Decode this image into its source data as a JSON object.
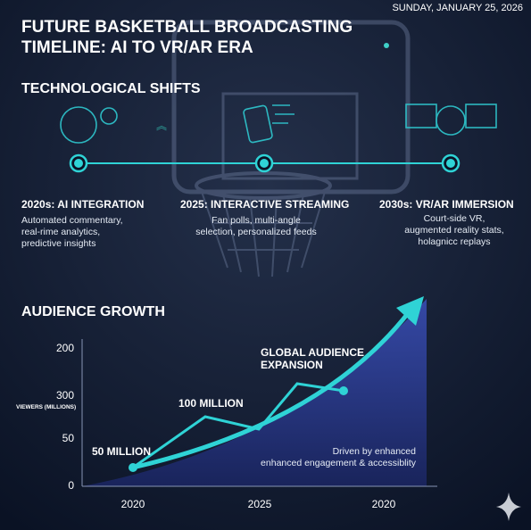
{
  "header": {
    "title_lines": [
      "FUTURE BASKETBALL BROADCASTING",
      "TIMELINE: AI TO VR/AR ERA"
    ],
    "date": "SUNDAY, JANUARY 25, 2026"
  },
  "timeline": {
    "heading": "TECHNOLOGICAL SHIFTS",
    "stages": [
      {
        "title": "2020s: AI INTEGRATION",
        "lines": [
          "Automated commentary,",
          "real-rime analytics,",
          "predictive insights"
        ]
      },
      {
        "title": "2025: INTERACTIVE STREAMING",
        "lines": [
          "Fan polls, multi-angle",
          "selection, personalized feeds"
        ]
      },
      {
        "title": "2030s: VR/AR IMMERSION",
        "lines": [
          "Court-side VR,",
          "augmented reality stats,",
          "holagnicc replays"
        ]
      }
    ]
  },
  "audience": {
    "heading": "AUDIENCE GROWTH",
    "y_axis_title": "VIEWERS (MILLIONS)",
    "y_labels": [
      "200",
      "300",
      "50",
      "0"
    ],
    "x_labels": [
      "2020",
      "2025",
      "2020"
    ],
    "annotations": [
      "50 MILLION",
      "100 MILLION"
    ],
    "callout_lines": [
      "GLOBAL AUDIENCE",
      "EXPANSION"
    ],
    "note_lines": [
      "Driven by enhanced",
      "enhanced engagement & accessiblity"
    ]
  }
}
